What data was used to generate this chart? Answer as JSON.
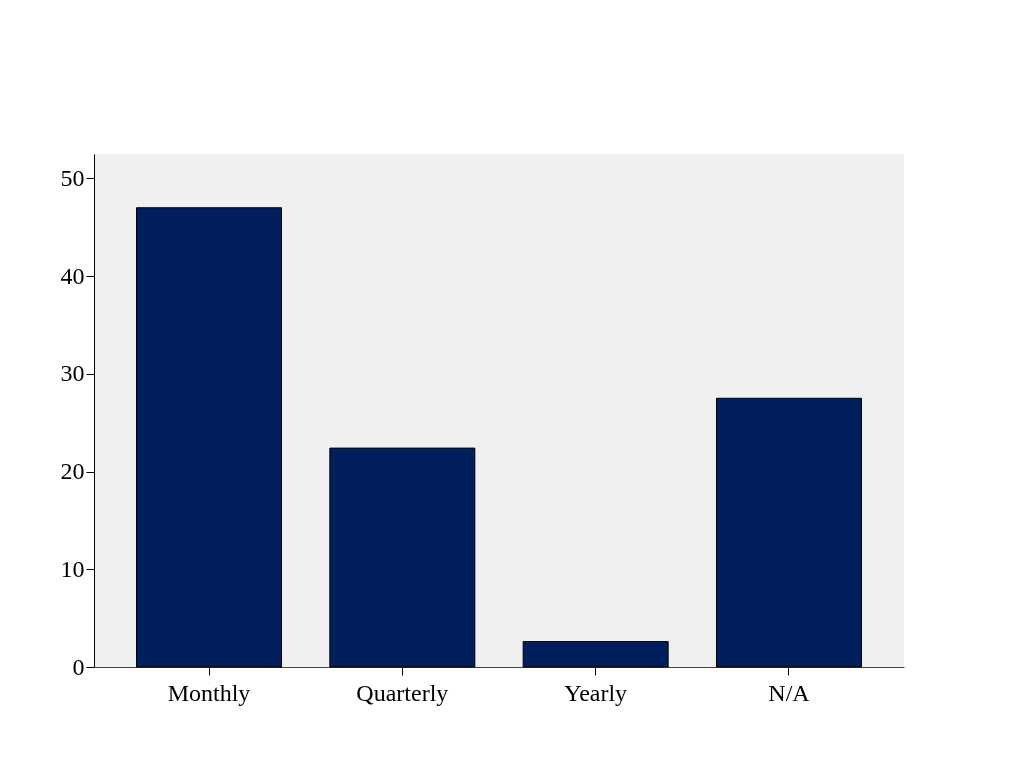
{
  "chart_data": {
    "type": "bar",
    "categories": [
      "Monthly",
      "Quarterly",
      "Yearly",
      "N/A"
    ],
    "values": [
      47,
      22.4,
      2.6,
      27.5
    ],
    "color": "#001f5c",
    "ylim": [
      0,
      52.5
    ],
    "yticks": [
      0,
      10,
      20,
      30,
      40,
      50
    ],
    "grid": false
  }
}
